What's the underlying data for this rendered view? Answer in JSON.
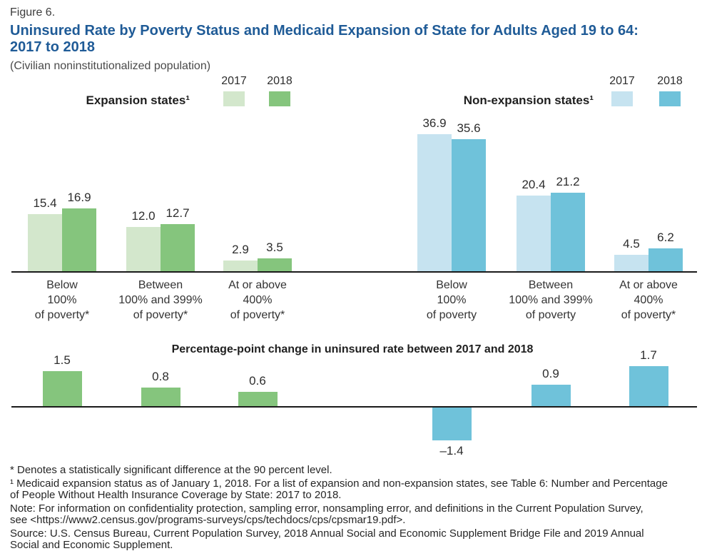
{
  "header": {
    "figure_label": "Figure 6.",
    "title_lines": [
      "Uninsured Rate by Poverty Status and Medicaid Expansion of State for Adults Aged 19 to 64:",
      "2017 to 2018"
    ],
    "subtitle": "(Civilian noninstitutionalized population)"
  },
  "colors": {
    "green_2017": "#d3e7cc",
    "green_2018": "#85c57d",
    "blue_2017": "#c6e3f0",
    "blue_2018": "#6fc2da",
    "title_blue": "#1f5b97",
    "axis": "#1a1a1a"
  },
  "chart_data": [
    {
      "id": "expansion",
      "type": "bar",
      "title": "Expansion states¹",
      "legend": [
        "2017",
        "2018"
      ],
      "legend_position": "top",
      "grid": false,
      "ylim": [
        0,
        40
      ],
      "categories": [
        "Below\n100%\nof poverty*",
        "Between\n100% and 399%\nof poverty*",
        "At or above\n400%\nof poverty*"
      ],
      "series": [
        {
          "name": "2017",
          "values": [
            15.4,
            12.0,
            2.9
          ],
          "labels": [
            "15.4",
            "12.0",
            "2.9"
          ],
          "color": "#d3e7cc"
        },
        {
          "name": "2018",
          "values": [
            16.9,
            12.7,
            3.5
          ],
          "labels": [
            "16.9",
            "12.7",
            "3.5"
          ],
          "color": "#85c57d"
        }
      ]
    },
    {
      "id": "non-expansion",
      "type": "bar",
      "title": "Non-expansion states¹",
      "legend": [
        "2017",
        "2018"
      ],
      "legend_position": "top",
      "grid": false,
      "ylim": [
        0,
        40
      ],
      "categories": [
        "Below\n100%\nof poverty",
        "Between\n100% and 399%\nof poverty",
        "At or above\n400%\nof poverty*"
      ],
      "series": [
        {
          "name": "2017",
          "values": [
            36.9,
            20.4,
            4.5
          ],
          "labels": [
            "36.9",
            "20.4",
            "4.5"
          ],
          "color": "#c6e3f0"
        },
        {
          "name": "2018",
          "values": [
            35.6,
            21.2,
            6.2
          ],
          "labels": [
            "35.6",
            "21.2",
            "6.2"
          ],
          "color": "#6fc2da"
        }
      ]
    },
    {
      "id": "change",
      "type": "bar",
      "title": "Percentage-point change in uninsured rate between 2017 and 2018",
      "grid": false,
      "ylim": [
        -2,
        2
      ],
      "categories": [
        "Expansion Below 100% of poverty",
        "Expansion Between 100% and 399% of poverty",
        "Expansion At or above 400% of poverty",
        "Non-expansion Below 100% of poverty",
        "Non-expansion Between 100% and 399% of poverty",
        "Non-expansion At or above 400% of poverty"
      ],
      "values": [
        1.5,
        0.8,
        0.6,
        -1.4,
        0.9,
        1.7
      ],
      "labels": [
        "1.5",
        "0.8",
        "0.6",
        "–1.4",
        "0.9",
        "1.7"
      ],
      "bar_colors": [
        "#85c57d",
        "#85c57d",
        "#85c57d",
        "#6fc2da",
        "#6fc2da",
        "#6fc2da"
      ]
    }
  ],
  "footnotes": [
    "* Denotes a statistically significant difference at the 90 percent level.",
    "¹ Medicaid expansion status as of January 1, 2018. For a list of expansion and non-expansion states, see Table 6: Number and Percentage",
    "of People Without Health Insurance Coverage by State: 2017 to 2018.",
    "Note: For information on confidentiality protection, sampling error, nonsampling error, and definitions in the Current Population Survey,",
    "see <https://www2.census.gov/programs-surveys/cps/techdocs/cps/cpsmar19.pdf>.",
    "Source: U.S. Census Bureau, Current Population Survey, 2018 Annual Social and Economic Supplement Bridge File and 2019 Annual",
    "Social and Economic Supplement."
  ]
}
